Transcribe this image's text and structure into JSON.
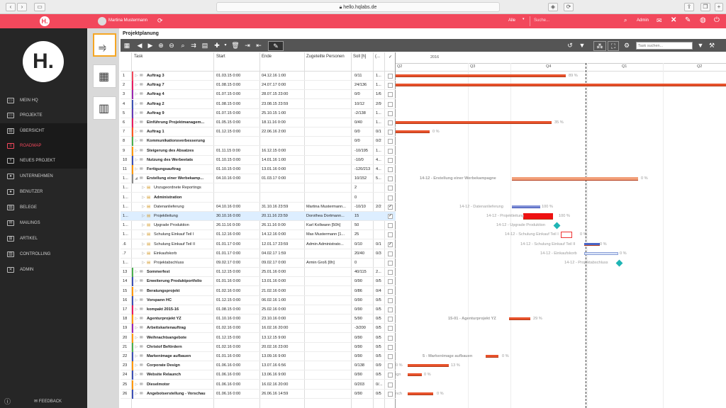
{
  "browser": {
    "url": "hello.hqlabs.de"
  },
  "appbar": {
    "user": "Martina Mustermann",
    "filter": "Alle",
    "search_placeholder": "Suche...",
    "admin": "Admin",
    "accent": "#f2485c"
  },
  "sidebar": {
    "logo": "H.",
    "items": [
      {
        "label": "MEIN HQ",
        "icon": "monitor-icon"
      },
      {
        "label": "PROJEKTE",
        "icon": "folder-icon"
      },
      {
        "label": "ÜBERSICHT",
        "icon": "overview-icon"
      },
      {
        "label": "ROADMAP",
        "icon": "roadmap-icon"
      },
      {
        "label": "NEUES PROJEKT",
        "icon": "new-project-icon"
      },
      {
        "label": "UNTERNEHMEN",
        "icon": "people-icon"
      },
      {
        "label": "BENUTZER",
        "icon": "users-icon"
      },
      {
        "label": "BELEGE",
        "icon": "documents-icon"
      },
      {
        "label": "MAILINGS",
        "icon": "mail-icon"
      },
      {
        "label": "ARTIKEL",
        "icon": "cart-icon"
      },
      {
        "label": "CONTROLLING",
        "icon": "chart-icon"
      },
      {
        "label": "ADMIN",
        "icon": "tools-icon"
      }
    ],
    "feedback": "FEEDBACK"
  },
  "page": {
    "title": "Projektplanung",
    "task_search_placeholder": "Task suchen..."
  },
  "columns": {
    "task": "Task",
    "start": "Start",
    "end": "Ende",
    "persons": "Zugeteilte Personen",
    "soll": "Soll [h]",
    "extra": "(...",
    "check": "✓"
  },
  "timeline": {
    "year": "2016",
    "quarters": [
      "Q2",
      "Q3",
      "Q4",
      "Q1",
      "Q2"
    ]
  },
  "rows": [
    {
      "num": "1",
      "name": "Auftrag 3",
      "start": "01.03.15 0:00",
      "end": "04.12.16 1:00",
      "person": "",
      "soll": "0/11",
      "x": "1..."
    },
    {
      "num": "2",
      "name": "Auftrag 7",
      "start": "01.08.15 0:00",
      "end": "24.07.17 0:00",
      "person": "",
      "soll": "24/136",
      "x": "1..."
    },
    {
      "num": "3",
      "name": "Auftrag 4",
      "start": "01.07.15 0:00",
      "end": "28.07.15 23:00",
      "person": "",
      "soll": "0/0",
      "x": "1/6"
    },
    {
      "num": "4",
      "name": "Auftrag 2",
      "start": "01.08.15 0:00",
      "end": "23.08.15 23:59",
      "person": "",
      "soll": "10/12",
      "x": "2/9"
    },
    {
      "num": "5",
      "name": "Auftrag 9",
      "start": "01.07.15 0:00",
      "end": "25.10.15 1:00",
      "person": "",
      "soll": "-2/138",
      "x": "1..."
    },
    {
      "num": "6",
      "name": "Einführung Projektmanagem...",
      "start": "01.05.15 0:00",
      "end": "18.11.16 0:00",
      "person": "",
      "soll": "0/40",
      "x": "1..."
    },
    {
      "num": "7",
      "name": "Auftrag 1",
      "start": "01.12.15 0:00",
      "end": "22.06.16 2:00",
      "person": "",
      "soll": "0/0",
      "x": "0/1"
    },
    {
      "num": "8",
      "name": "Kommunikationsverbesserung",
      "start": "",
      "end": "",
      "person": "",
      "soll": "0/0",
      "x": "0/2"
    },
    {
      "num": "9",
      "name": "Steigerung des Absatzes",
      "start": "01.11.15 0:00",
      "end": "16.12.15 0:00",
      "person": "",
      "soll": "-10/195",
      "x": "1..."
    },
    {
      "num": "10",
      "name": "Nutzung des Werbeetats",
      "start": "01.10.15 0:00",
      "end": "14.01.16 1:00",
      "person": "",
      "soll": "-10/0",
      "x": "4..."
    },
    {
      "num": "11",
      "name": "Fertigungsauftrag",
      "start": "01.10.15 0:00",
      "end": "13.01.16 0:00",
      "person": "",
      "soll": "-120/213",
      "x": "4..."
    },
    {
      "num": "1...",
      "name": "Erstellung einer Werbekamp...",
      "start": "04.10.16 0:00",
      "end": "01.03.17 0:00",
      "person": "",
      "soll": "10/152",
      "x": "5..."
    },
    {
      "num": "1...",
      "name": "Unzugeordnete Reportings",
      "start": "",
      "end": "",
      "person": "",
      "soll": "2",
      "x": ""
    },
    {
      "num": "1...",
      "name": "Administration",
      "start": "",
      "end": "",
      "person": "",
      "soll": "0",
      "x": ""
    },
    {
      "num": "1...",
      "name": "Datenanlieferung",
      "start": "04.10.16 0:00",
      "end": "31.10.16 23:59",
      "person": "Martina Mustermann...",
      "soll": "-10/10",
      "x": "2/2"
    },
    {
      "num": "1...",
      "name": "Projektleitung",
      "start": "30.10.16 0:00",
      "end": "20.11.16 23:59",
      "person": "Dorothea Dortmann...",
      "soll": "15",
      "x": ""
    },
    {
      "num": "1...",
      "name": "Upgrade Produktion",
      "start": "26.11.16 0:00",
      "end": "26.11.16 0:00",
      "person": "Karl Kollwann [50h]",
      "soll": "50",
      "x": ""
    },
    {
      "num": "1...",
      "name": "Schulung Einkauf Teil I",
      "start": "01.12.16 0:00",
      "end": "14.12.16 0:00",
      "person": "Max Mustermann [1...",
      "soll": "25",
      "x": ""
    },
    {
      "num": ".6",
      "name": "Schulung Einkauf Teil II",
      "start": "01.01.17 0:00",
      "end": "12.01.17 23:59",
      "person": "Admin Administrato...",
      "soll": "0/10",
      "x": "0/1"
    },
    {
      "num": ".7",
      "name": "Einkaufskorb",
      "start": "01.01.17 0:00",
      "end": "04.02.17 1:59",
      "person": "",
      "soll": "20/40",
      "x": "0/3"
    },
    {
      "num": "1...",
      "name": "Projektabschluss",
      "start": "09.02.17 0:00",
      "end": "09.02.17 0:00",
      "person": "Armin Groß [0h]",
      "soll": "0",
      "x": ""
    },
    {
      "num": "13",
      "name": "Sommerfest",
      "start": "01.12.15 0:00",
      "end": "25.01.16 0:00",
      "person": "",
      "soll": "40/115",
      "x": "2..."
    },
    {
      "num": "14",
      "name": "Erweiterung Produktportfolio",
      "start": "01.01.16 0:00",
      "end": "13.01.16 0:00",
      "person": "",
      "soll": "0/90",
      "x": "0/5"
    },
    {
      "num": "15",
      "name": "Beratungsprojekt",
      "start": "01.02.16 0:00",
      "end": "21.02.16 0:00",
      "person": "",
      "soll": "0/86",
      "x": "0/4"
    },
    {
      "num": "16",
      "name": "Vorspann HC",
      "start": "01.12.15 0:00",
      "end": "06.02.16 1:00",
      "person": "",
      "soll": "0/90",
      "x": "0/5"
    },
    {
      "num": "17",
      "name": "kompakt 2015-16",
      "start": "01.08.15 0:00",
      "end": "25.02.16 0:00",
      "person": "",
      "soll": "0/90",
      "x": "0/5"
    },
    {
      "num": "18",
      "name": "Agenturprojekt YZ",
      "start": "01.10.16 0:00",
      "end": "23.10.16 0:00",
      "person": "",
      "soll": "5/90",
      "x": "0/5"
    },
    {
      "num": "19",
      "name": "Arbeitskartenauftrag",
      "start": "01.02.16 0:00",
      "end": "16.02.16 20:00",
      "person": "",
      "soll": "-3/200",
      "x": "0/5"
    },
    {
      "num": "20",
      "name": "Weihnachtsangebote",
      "start": "01.12.15 0:00",
      "end": "13.12.15 9:00",
      "person": "",
      "soll": "0/90",
      "x": "0/5"
    },
    {
      "num": "21",
      "name": "Christof Befördern",
      "start": "01.02.16 0:00",
      "end": "20.02.16 23:00",
      "person": "",
      "soll": "0/90",
      "x": "0/5"
    },
    {
      "num": "22",
      "name": "Markenimage aufbauen",
      "start": "01.01.16 0:00",
      "end": "13.09.16 9:00",
      "person": "",
      "soll": "0/90",
      "x": "0/5"
    },
    {
      "num": "23",
      "name": "Corporate Design",
      "start": "01.06.16 0:00",
      "end": "13.07.16 6:56",
      "person": "",
      "soll": "0/138",
      "x": "0/9"
    },
    {
      "num": "24",
      "name": "Website Relaunch",
      "start": "01.06.16 0:00",
      "end": "13.06.16 9:00",
      "person": "",
      "soll": "0/90",
      "x": "0/5"
    },
    {
      "num": "25",
      "name": "Dieselmotor",
      "start": "01.06.16 0:00",
      "end": "16.02.16 20:00",
      "person": "",
      "soll": "0/203",
      "x": "0/..."
    },
    {
      "num": "26",
      "name": "Angebotserstellung - Vorschau",
      "start": "01.06.16 0:00",
      "end": "26.06.16 14:59",
      "person": "",
      "soll": "0/90",
      "x": "0/5"
    }
  ],
  "gantt_labels": [
    {
      "text": "89 %"
    },
    {
      "text": "35 %"
    },
    {
      "text": "0 %"
    },
    {
      "text": "14-12 - Erstellung einer Werbekampagne"
    },
    {
      "text": "0 %"
    },
    {
      "text": "14-12 - Datenanlieferung"
    },
    {
      "text": "100 %"
    },
    {
      "text": "14-12 - Projektleitung"
    },
    {
      "text": "100 %"
    },
    {
      "text": "14-12 - Upgrade Produktion"
    },
    {
      "text": "14-12 - Schulung Einkauf Teil I"
    },
    {
      "text": "0 %"
    },
    {
      "text": "14-12 - Schulung Einkauf Teil II"
    },
    {
      "text": "0 %"
    },
    {
      "text": "14-12 - Einkaufskorb"
    },
    {
      "text": "0 %"
    },
    {
      "text": "14-12 - Projektabschluss"
    },
    {
      "text": "15-01 - Agenturprojekt YZ"
    },
    {
      "text": "29 %"
    },
    {
      "text": "5 - Markenimage aufbauen"
    },
    {
      "text": "0 %"
    },
    {
      "text": "13 %"
    },
    {
      "text": "0 %"
    },
    {
      "text": "0 %"
    },
    {
      "text": "0 %"
    },
    {
      "text": "ign"
    },
    {
      "text": "nch"
    },
    {
      "text": "hau"
    }
  ]
}
